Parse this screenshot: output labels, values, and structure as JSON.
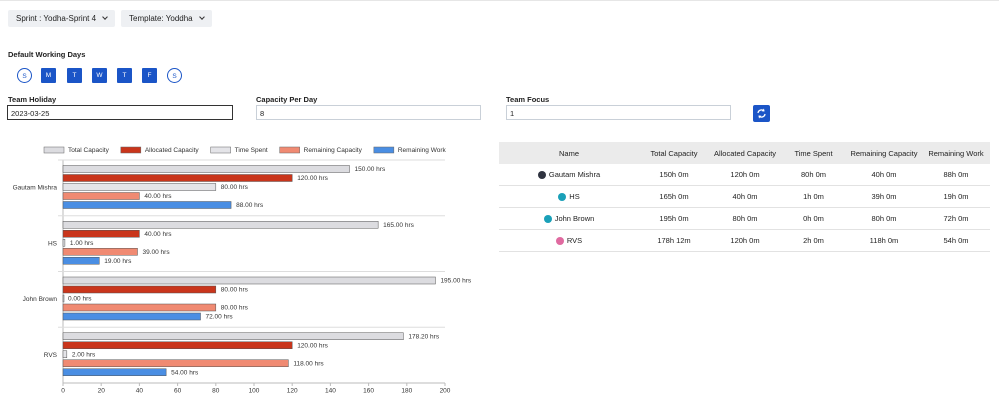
{
  "toolbar": {
    "sprint": "Sprint : Yodha-Sprint 4",
    "template": "Template: Yoddha"
  },
  "working_days": {
    "label": "Default Working Days",
    "days": [
      "S",
      "M",
      "T",
      "W",
      "T",
      "F",
      "S"
    ]
  },
  "form": {
    "team_holiday": {
      "label": "Team Holiday",
      "value": "2023-03-25"
    },
    "capacity_per_day": {
      "label": "Capacity Per Day",
      "value": "8"
    },
    "team_focus": {
      "label": "Team Focus",
      "value": "1"
    }
  },
  "table": {
    "headers": [
      "Name",
      "Total Capacity",
      "Allocated Capacity",
      "Time Spent",
      "Remaining Capacity",
      "Remaining Work"
    ],
    "rows": [
      [
        "Gautam Mishra",
        "150h 0m",
        "120h 0m",
        "80h 0m",
        "40h 0m",
        "88h 0m"
      ],
      [
        "HS",
        "165h 0m",
        "40h 0m",
        "1h 0m",
        "39h 0m",
        "19h 0m"
      ],
      [
        "John Brown",
        "195h 0m",
        "80h 0m",
        "0h 0m",
        "80h 0m",
        "72h 0m"
      ],
      [
        "RVS",
        "178h 12m",
        "120h 0m",
        "2h 0m",
        "118h 0m",
        "54h 0m"
      ]
    ]
  },
  "chart_data": {
    "type": "bar",
    "orientation": "horizontal",
    "categories": [
      "Gautam Mishra",
      "HS",
      "John Brown",
      "RVS"
    ],
    "series": [
      {
        "name": "Total Capacity",
        "color": "#dcdce0",
        "values": [
          150,
          165,
          195,
          178.2
        ],
        "value_labels": [
          "150.00 hrs",
          "165.00 hrs",
          "195.00 hrs",
          "178.20 hrs"
        ]
      },
      {
        "name": "Allocated Capacity",
        "color": "#c9351b",
        "values": [
          120,
          40,
          80,
          120
        ],
        "value_labels": [
          "120.00 hrs",
          "40.00 hrs",
          "80.00 hrs",
          "120.00 hrs"
        ]
      },
      {
        "name": "Time Spent",
        "color": "#e4e4e8",
        "values": [
          80,
          1,
          0,
          2
        ],
        "value_labels": [
          "80.00 hrs",
          "1.00 hrs",
          "0.00 hrs",
          "2.00 hrs"
        ]
      },
      {
        "name": "Remaining Capacity",
        "color": "#f08a72",
        "values": [
          40,
          39,
          80,
          118
        ],
        "value_labels": [
          "40.00 hrs",
          "39.00 hrs",
          "80.00 hrs",
          "118.00 hrs"
        ]
      },
      {
        "name": "Remaining Work",
        "color": "#4a8ee3",
        "values": [
          88,
          19,
          72,
          54
        ],
        "value_labels": [
          "88.00 hrs",
          "19.00 hrs",
          "72.00 hrs",
          "54.00 hrs"
        ]
      }
    ],
    "xlim": [
      0,
      200
    ],
    "xticks": [
      0,
      20,
      40,
      60,
      80,
      100,
      120,
      140,
      160,
      180,
      200
    ],
    "legend": "top"
  }
}
